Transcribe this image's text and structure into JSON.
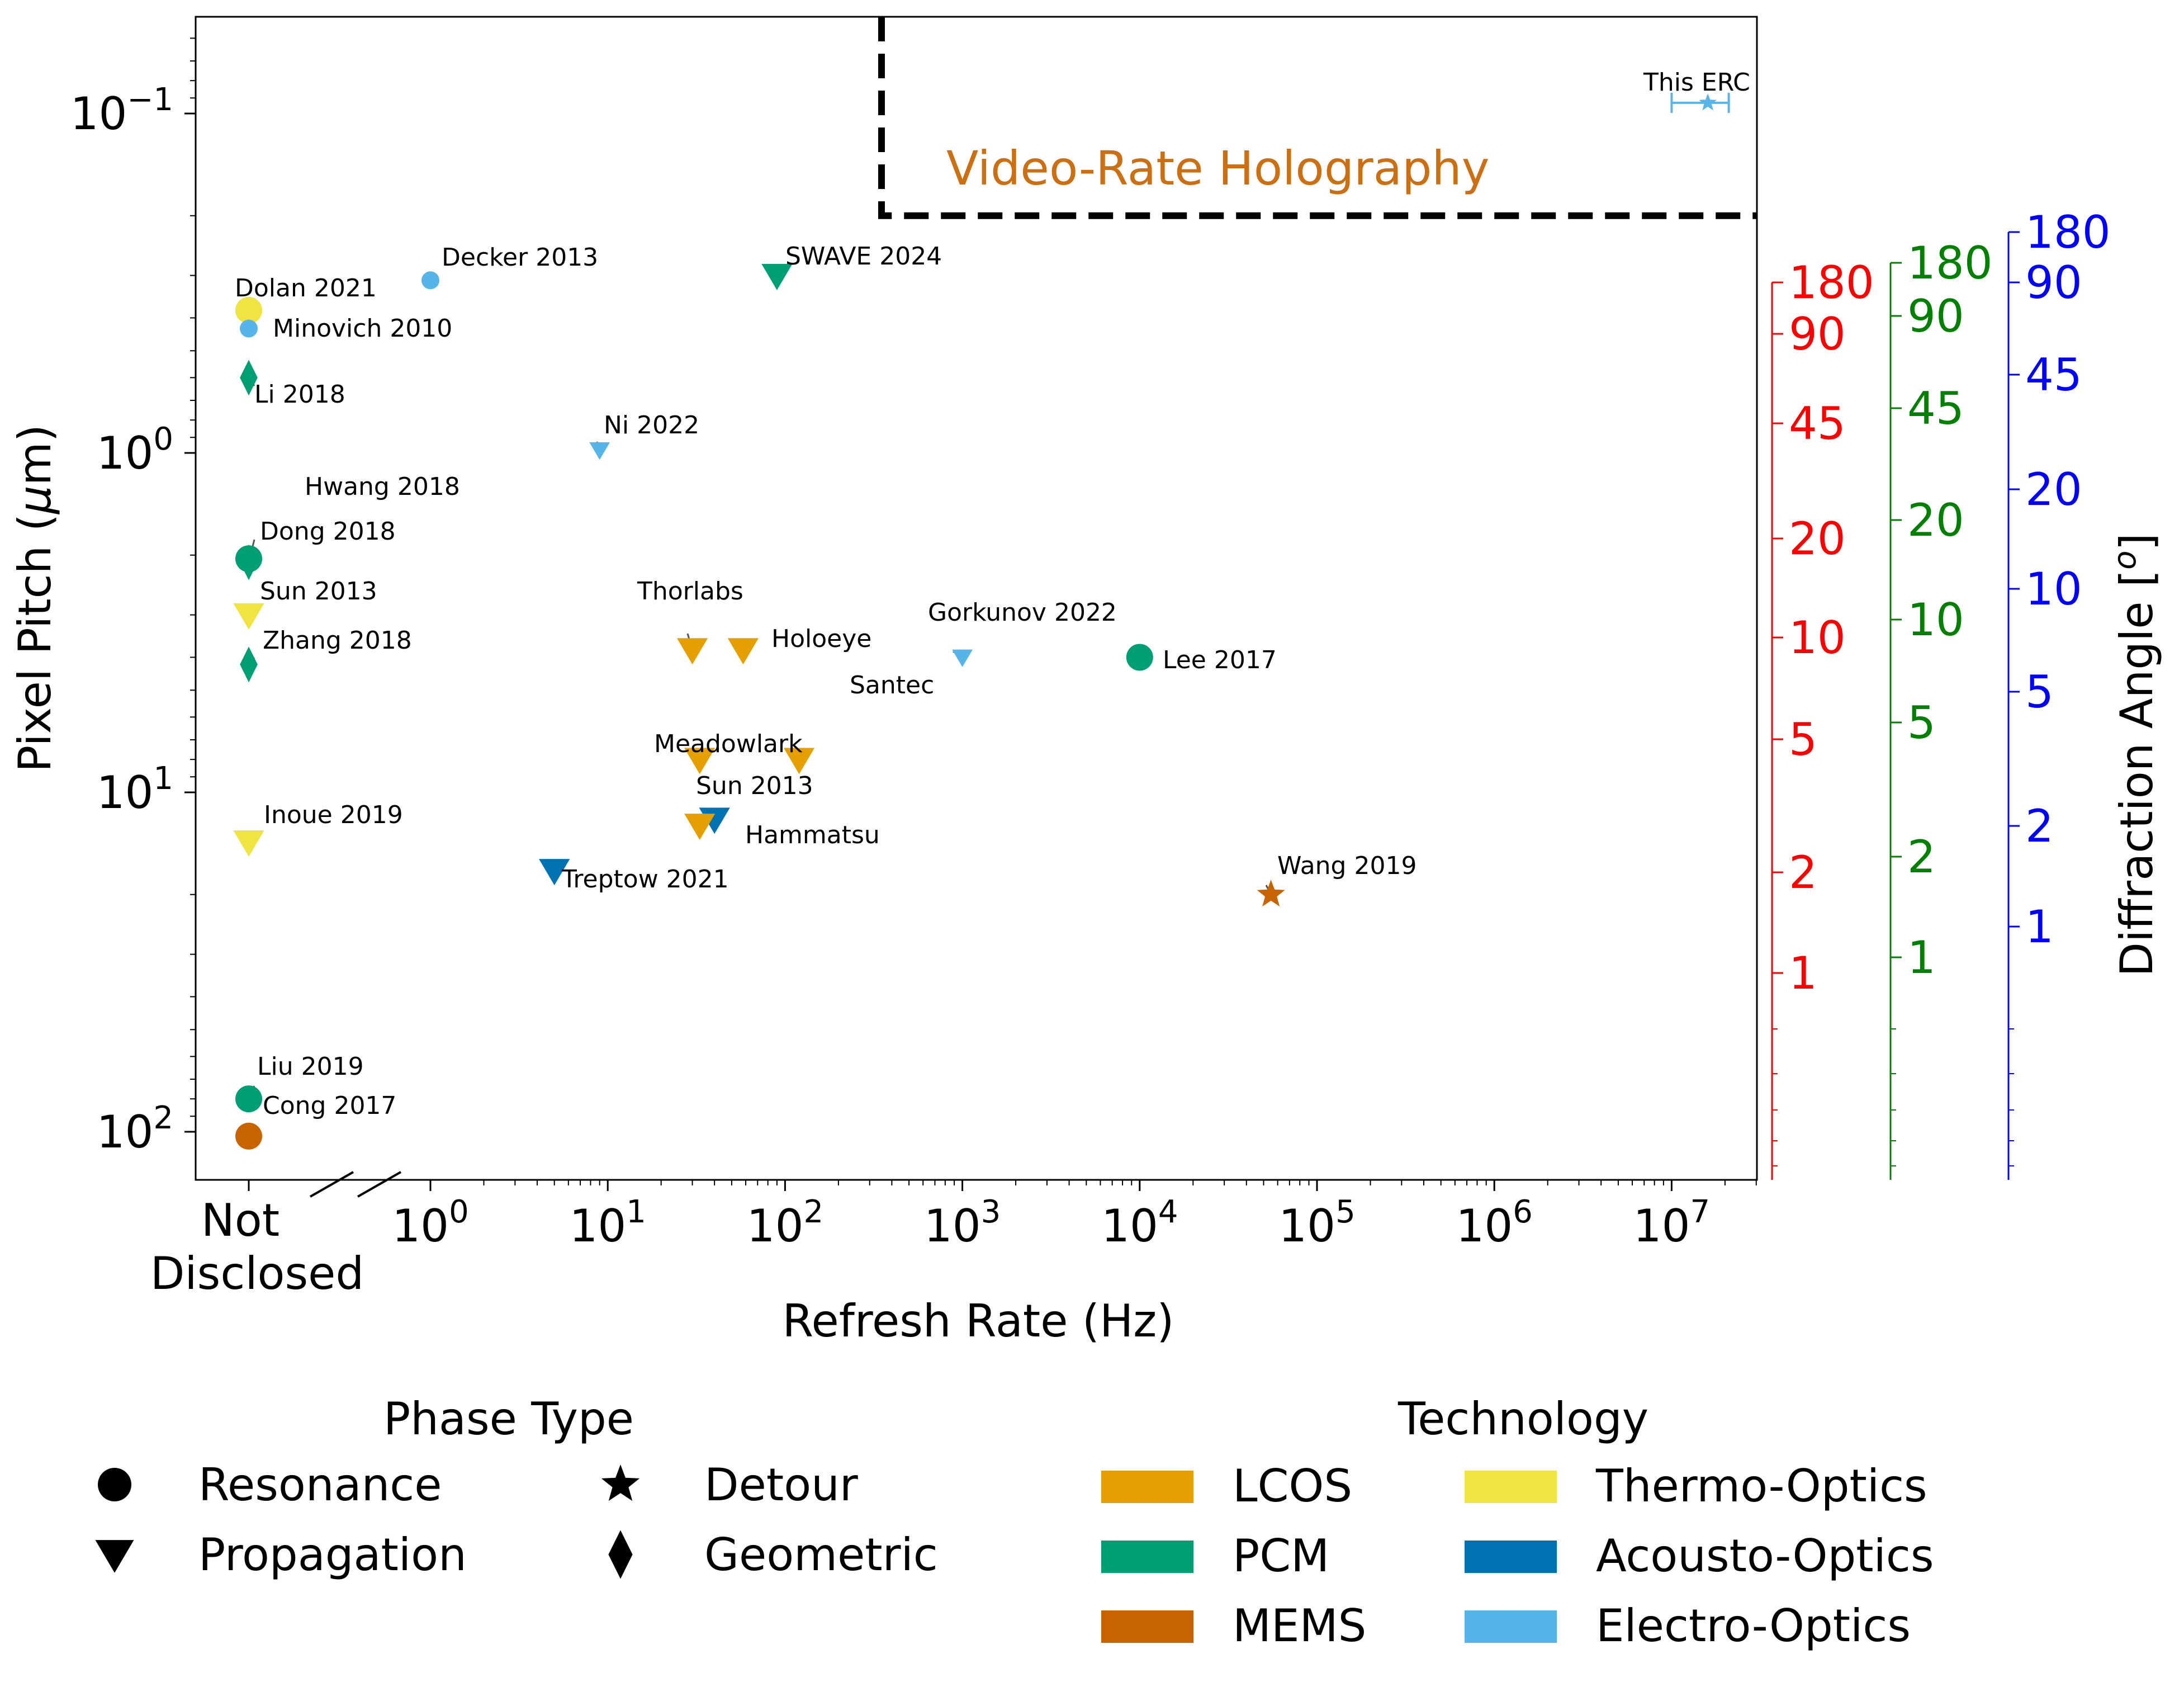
{
  "chart_data": {
    "type": "scatter",
    "xlabel": "Refresh Rate (Hz)",
    "ylabel": "Pixel Pitch ($\\mu$m)",
    "x_scale": "log",
    "y_scale": "log-inverted",
    "x_special_category": "Not Disclosed",
    "xlim": [
      0.6,
      30000000
    ],
    "ylim": [
      150,
      0.05
    ],
    "x_ticks": [
      1,
      10,
      100,
      1000,
      10000,
      100000,
      1000000,
      10000000
    ],
    "x_tick_labels": [
      {
        "base": "10",
        "exp": "0"
      },
      {
        "base": "10",
        "exp": "1"
      },
      {
        "base": "10",
        "exp": "2"
      },
      {
        "base": "10",
        "exp": "3"
      },
      {
        "base": "10",
        "exp": "4"
      },
      {
        "base": "10",
        "exp": "5"
      },
      {
        "base": "10",
        "exp": "6"
      },
      {
        "base": "10",
        "exp": "7"
      }
    ],
    "not_disclosed_label": [
      "Not",
      "Disclosed"
    ],
    "y_ticks": [
      {
        "value": 0.1,
        "base": "10",
        "exp": "−1"
      },
      {
        "value": 1,
        "base": "10",
        "exp": "0"
      },
      {
        "value": 10,
        "base": "10",
        "exp": "1"
      },
      {
        "value": 100,
        "base": "10",
        "exp": "2"
      }
    ],
    "region": {
      "label": "Video-Rate Holography",
      "x_min": 350,
      "y_max": 0.2,
      "label_color": "#cc6f12"
    },
    "right_axes": [
      {
        "color": "#ff0000",
        "labels": [
          "180",
          "90",
          "45",
          "20",
          "10",
          "5",
          "2",
          "1"
        ]
      },
      {
        "color": "#008000",
        "labels": [
          "180",
          "90",
          "45",
          "20",
          "10",
          "5",
          "2",
          "1"
        ]
      },
      {
        "color": "#0000ff",
        "labels": [
          "180",
          "90",
          "45",
          "20",
          "10",
          "5",
          "2",
          "1"
        ]
      }
    ],
    "right_axis_title": "Diffraction Angle [$^o$]",
    "technology_colors": {
      "LCOS": "#e69f00",
      "PCM": "#009e73",
      "MEMS": "#c86400",
      "Thermo-Optics": "#f0e442",
      "Acousto-Optics": "#0072b2",
      "Electro-Optics": "#56b4e9"
    },
    "points": [
      {
        "label": "This ERC",
        "x": 16000000,
        "y": 0.093,
        "tech": "Electro-Optics",
        "phase": "Detour",
        "x_err": [
          10000000,
          21000000
        ]
      },
      {
        "label": "Decker 2013",
        "x": 1.0,
        "y": 0.31,
        "tech": "Electro-Optics",
        "phase": "Resonance"
      },
      {
        "label": "Dolan 2021",
        "x": "Not Disclosed",
        "y": 0.38,
        "tech": "Thermo-Optics",
        "phase": "Resonance"
      },
      {
        "label": "Minovich 2010",
        "x": "Not Disclosed",
        "y": 0.43,
        "tech": "Electro-Optics",
        "phase": "Resonance"
      },
      {
        "label": "Li 2018",
        "x": "Not Disclosed",
        "y": 0.6,
        "tech": "PCM",
        "phase": "Geometric"
      },
      {
        "label": "SWAVE 2024",
        "x": 90,
        "y": 0.3,
        "tech": "PCM",
        "phase": "Propagation"
      },
      {
        "label": "Ni 2022",
        "x": 9,
        "y": 0.98,
        "tech": "Electro-Optics",
        "phase": "Propagation"
      },
      {
        "label": "Hwang 2018",
        "x": "Not Disclosed",
        "y": 2.1,
        "tech": "PCM",
        "phase": "Geometric"
      },
      {
        "label": "Dong 2018",
        "x": "Not Disclosed",
        "y": 2.05,
        "tech": "PCM",
        "phase": "Resonance"
      },
      {
        "label": "Sun 2013",
        "x": "Not Disclosed",
        "y": 3.0,
        "tech": "Thermo-Optics",
        "phase": "Propagation"
      },
      {
        "label": "Zhang 2018",
        "x": "Not Disclosed",
        "y": 4.2,
        "tech": "PCM",
        "phase": "Geometric"
      },
      {
        "label": "Thorlabs",
        "x": 30,
        "y": 3.8,
        "tech": "LCOS",
        "phase": "Propagation"
      },
      {
        "label": "Holoeye",
        "x": 58,
        "y": 3.8,
        "tech": "LCOS",
        "phase": "Propagation"
      },
      {
        "label": "Gorkunov 2022",
        "x": 1000,
        "y": 4.0,
        "tech": "Electro-Optics",
        "phase": "Propagation"
      },
      {
        "label": "Lee 2017",
        "x": 10000,
        "y": 4.0,
        "tech": "PCM",
        "phase": "Resonance"
      },
      {
        "label": "Santec",
        "x": 120,
        "y": 8.0,
        "tech": "LCOS",
        "phase": "Propagation"
      },
      {
        "label": "Meadowlark",
        "x": 33,
        "y": 8.0,
        "tech": "LCOS",
        "phase": "Propagation"
      },
      {
        "label": "Sun 2013",
        "x": 40,
        "y": 12.0,
        "tech": "Acousto-Optics",
        "phase": "Propagation"
      },
      {
        "label": "Hammatsu",
        "x": 33,
        "y": 12.5,
        "tech": "LCOS",
        "phase": "Propagation"
      },
      {
        "label": "Inoue 2019",
        "x": "Not Disclosed",
        "y": 14.0,
        "tech": "Thermo-Optics",
        "phase": "Propagation"
      },
      {
        "label": "Treptow 2021",
        "x": 5,
        "y": 17.0,
        "tech": "Acousto-Optics",
        "phase": "Propagation"
      },
      {
        "label": "Wang 2019",
        "x": 55000,
        "y": 20.0,
        "tech": "MEMS",
        "phase": "Detour"
      },
      {
        "label": "Liu 2019",
        "x": "Not Disclosed",
        "y": 80.0,
        "tech": "PCM",
        "phase": "Resonance"
      },
      {
        "label": "Cong 2017",
        "x": "Not Disclosed",
        "y": 103.0,
        "tech": "MEMS",
        "phase": "Resonance"
      }
    ],
    "legends": [
      {
        "title": "Phase Type",
        "items": [
          {
            "label": "Resonance",
            "marker": "circle"
          },
          {
            "label": "Propagation",
            "marker": "triangle-down"
          },
          {
            "label": "Detour",
            "marker": "star"
          },
          {
            "label": "Geometric",
            "marker": "diamond"
          }
        ]
      },
      {
        "title": "Technology",
        "items": [
          {
            "label": "LCOS",
            "color": "#e69f00"
          },
          {
            "label": "PCM",
            "color": "#009e73"
          },
          {
            "label": "MEMS",
            "color": "#c86400"
          },
          {
            "label": "Thermo-Optics",
            "color": "#f0e442"
          },
          {
            "label": "Acousto-Optics",
            "color": "#0072b2"
          },
          {
            "label": "Electro-Optics",
            "color": "#56b4e9"
          }
        ]
      }
    ],
    "legend_placement": "bottom",
    "grid": false
  }
}
